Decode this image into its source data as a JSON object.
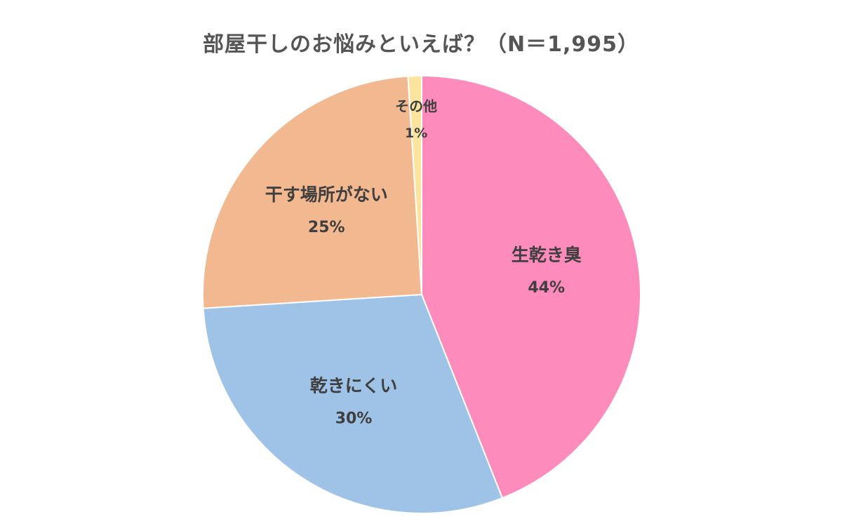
{
  "chart_data": {
    "type": "pie",
    "title": "部屋干しのお悩みといえば？（N＝1,995）",
    "slices": [
      {
        "label": "生乾き臭",
        "value": 44,
        "value_label": "44%",
        "color": "#fd8bbb"
      },
      {
        "label": "乾きにくい",
        "value": 30,
        "value_label": "30%",
        "color": "#9fc3e6"
      },
      {
        "label": "干す場所がない",
        "value": 25,
        "value_label": "25%",
        "color": "#f2b890"
      },
      {
        "label": "その他",
        "value": 1,
        "value_label": "1%",
        "color": "#fbe49d"
      }
    ],
    "start": "12 o'clock",
    "direction": "clockwise"
  }
}
